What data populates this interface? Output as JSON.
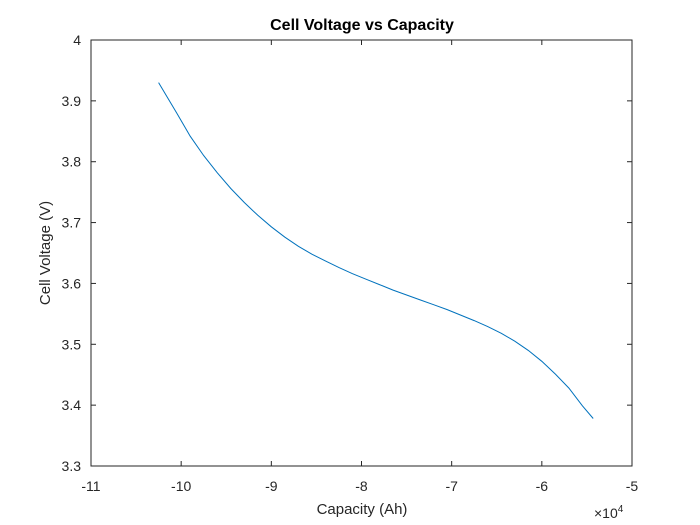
{
  "chart_data": {
    "type": "line",
    "title": "Cell Voltage vs Capacity",
    "xlabel": "Capacity (Ah)",
    "ylabel": "Cell Voltage (V)",
    "x_exponent_base": "×10",
    "x_exponent_power": "4",
    "xlim": [
      -110000,
      -50000
    ],
    "ylim": [
      3.3,
      4.0
    ],
    "xticks": [
      -110000,
      -100000,
      -90000,
      -80000,
      -70000,
      -60000,
      -50000
    ],
    "xtick_labels": [
      "-11",
      "-10",
      "-9",
      "-8",
      "-7",
      "-6",
      "-5"
    ],
    "yticks": [
      3.3,
      3.4,
      3.5,
      3.6,
      3.7,
      3.8,
      3.9,
      4.0
    ],
    "ytick_labels": [
      "3.3",
      "3.4",
      "3.5",
      "3.6",
      "3.7",
      "3.8",
      "3.9",
      "4"
    ],
    "grid": false,
    "line_color": "#0072BD",
    "series": [
      {
        "x": [
          -102500,
          -101500,
          -100500,
          -99000,
          -97500,
          -96000,
          -94500,
          -93000,
          -91500,
          -90000,
          -88500,
          -87000,
          -85500,
          -84000,
          -82500,
          -81000,
          -79500,
          -78000,
          -76500,
          -75000,
          -73500,
          -72000,
          -70500,
          -69000,
          -67500,
          -66000,
          -64500,
          -63000,
          -61500,
          -60000,
          -58500,
          -57000,
          -55500,
          -54300
        ],
        "y": [
          3.93,
          3.905,
          3.88,
          3.842,
          3.81,
          3.782,
          3.756,
          3.733,
          3.712,
          3.693,
          3.676,
          3.661,
          3.648,
          3.637,
          3.626,
          3.616,
          3.607,
          3.598,
          3.589,
          3.581,
          3.573,
          3.565,
          3.557,
          3.548,
          3.539,
          3.529,
          3.518,
          3.505,
          3.49,
          3.472,
          3.451,
          3.428,
          3.399,
          3.378
        ]
      }
    ]
  }
}
